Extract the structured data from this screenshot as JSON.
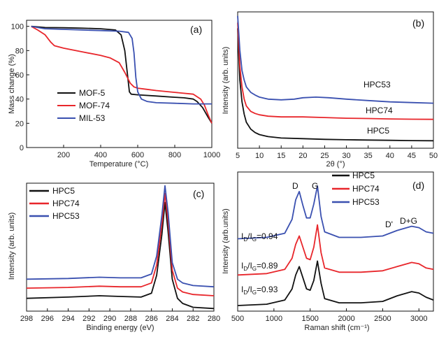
{
  "colors": {
    "black": "#111111",
    "red": "#e8262b",
    "blue": "#3a50b0"
  },
  "chart_data": [
    {
      "panel": "(a)",
      "type": "line",
      "xlabel": "Temperature (°C)",
      "ylabel": "Mass change (%)",
      "xlim": [
        0,
        1000
      ],
      "ylim": [
        0,
        105
      ],
      "xticks": [
        "200",
        "400",
        "600",
        "800",
        "1000"
      ],
      "yticks": [
        "0",
        "20",
        "40",
        "60",
        "80",
        "100"
      ],
      "legend_position": "bottom-left",
      "series": [
        {
          "name": "MOF-5",
          "color": "#111111",
          "x": [
            25,
            100,
            200,
            300,
            400,
            480,
            510,
            530,
            545,
            555,
            565,
            600,
            700,
            800,
            850,
            900,
            920,
            950,
            980,
            1000
          ],
          "y": [
            100,
            99,
            98.8,
            98.5,
            98,
            97,
            93,
            80,
            60,
            46,
            44,
            43.5,
            42.5,
            41.5,
            41,
            40,
            38,
            33,
            25,
            20
          ]
        },
        {
          "name": "MOF-74",
          "color": "#e8262b",
          "x": [
            25,
            60,
            100,
            130,
            150,
            200,
            300,
            400,
            450,
            500,
            530,
            560,
            580,
            600,
            650,
            700,
            800,
            900,
            940,
            960,
            980,
            1000
          ],
          "y": [
            100,
            97,
            93,
            87,
            84,
            82,
            79,
            76,
            74,
            70,
            62,
            53,
            50,
            49,
            48,
            47,
            45.5,
            44,
            40,
            35,
            27,
            20
          ]
        },
        {
          "name": "MIL-53",
          "color": "#3a50b0",
          "x": [
            25,
            100,
            200,
            300,
            400,
            500,
            550,
            570,
            580,
            590,
            600,
            620,
            650,
            700,
            800,
            900,
            950,
            1000
          ],
          "y": [
            100,
            98,
            97.5,
            97,
            96.5,
            96,
            95,
            90,
            78,
            58,
            46,
            40,
            38,
            37,
            36.5,
            36,
            36,
            36
          ]
        }
      ]
    },
    {
      "panel": "(b)",
      "type": "line",
      "xlabel": "2θ (°)",
      "ylabel": "Intensity (arb. units)",
      "xlim": [
        5,
        50
      ],
      "ylim": [
        0,
        100
      ],
      "xticks": [
        "5",
        "10",
        "15",
        "20",
        "25",
        "30",
        "35",
        "40",
        "45",
        "50"
      ],
      "series": [
        {
          "name": "HPC5",
          "color": "#111111",
          "x": [
            5,
            5.5,
            6,
            6.5,
            7,
            8,
            9,
            10,
            12,
            15,
            20,
            25,
            30,
            35,
            40,
            45,
            50
          ],
          "y": [
            88,
            50,
            34,
            25,
            19,
            14,
            11.5,
            10,
            8.5,
            7.5,
            7,
            6.5,
            6.2,
            6,
            5.8,
            5.6,
            5.5
          ]
        },
        {
          "name": "HPC74",
          "color": "#e8262b",
          "x": [
            5,
            5.5,
            6,
            6.5,
            7,
            8,
            9,
            10,
            12,
            15,
            20,
            25,
            30,
            35,
            40,
            45,
            50
          ],
          "y": [
            92,
            60,
            45,
            36,
            31,
            27,
            25.5,
            24.5,
            23.5,
            23,
            23,
            22.5,
            22,
            21.8,
            21.5,
            21.3,
            21.2
          ]
        },
        {
          "name": "HPC53",
          "color": "#3a50b0",
          "x": [
            5,
            5.5,
            6,
            6.5,
            7,
            8,
            9,
            10,
            12,
            15,
            18,
            20,
            23,
            26,
            30,
            35,
            40,
            45,
            50
          ],
          "y": [
            97,
            72,
            57,
            50,
            45,
            41,
            39,
            37.5,
            36,
            35.5,
            36,
            37,
            37.5,
            37,
            36,
            35,
            34,
            33.5,
            33
          ]
        }
      ],
      "annotations": [
        "HPC53",
        "HPC74",
        "HPC5"
      ]
    },
    {
      "panel": "(c)",
      "type": "line",
      "xlabel": "Binding energy (eV)",
      "ylabel": "Intensity (arb. units)",
      "xlim": [
        298,
        280
      ],
      "ylim": [
        0,
        100
      ],
      "xticks": [
        "298",
        "296",
        "294",
        "292",
        "290",
        "288",
        "286",
        "284",
        "282",
        "280"
      ],
      "legend_position": "top-left",
      "series": [
        {
          "name": "HPC5",
          "color": "#111111",
          "x": [
            298,
            294,
            291,
            289,
            287,
            286,
            285.5,
            285,
            284.7,
            284.4,
            284,
            283.5,
            283,
            282,
            280
          ],
          "y": [
            10,
            11,
            12,
            11.5,
            11,
            14,
            28,
            60,
            85,
            62,
            25,
            10,
            6,
            3,
            2
          ]
        },
        {
          "name": "HPC74",
          "color": "#e8262b",
          "x": [
            298,
            294,
            291,
            289,
            287,
            286,
            285.5,
            285,
            284.7,
            284.4,
            284,
            283.5,
            283,
            282,
            280
          ],
          "y": [
            18,
            18.5,
            19.5,
            19,
            19,
            22,
            36,
            68,
            92,
            70,
            32,
            18,
            15,
            13,
            12
          ]
        },
        {
          "name": "HPC53",
          "color": "#3a50b0",
          "x": [
            298,
            294,
            291,
            289,
            287,
            286,
            285.5,
            285,
            284.7,
            284.4,
            284,
            283.5,
            283,
            282,
            280
          ],
          "y": [
            25,
            25.5,
            26.5,
            26,
            26,
            29,
            43,
            75,
            98,
            77,
            38,
            25,
            22,
            20,
            19
          ]
        }
      ]
    },
    {
      "panel": "(d)",
      "type": "line",
      "xlabel": "Raman shift (cm⁻¹)",
      "ylabel": "Intensity (arb.units)",
      "xlim": [
        500,
        3200
      ],
      "ylim": [
        0,
        100
      ],
      "xticks": [
        "500",
        "1000",
        "1500",
        "2000",
        "2500",
        "3000"
      ],
      "legend_position": "top-center",
      "series": [
        {
          "name": "HPC5",
          "color": "#111111",
          "x": [
            500,
            900,
            1150,
            1250,
            1300,
            1350,
            1400,
            1450,
            1500,
            1550,
            1600,
            1650,
            1700,
            1900,
            2200,
            2500,
            2700,
            2900,
            3000,
            3100,
            3200
          ],
          "y": [
            4,
            5,
            8,
            16,
            26,
            32,
            24,
            16,
            15,
            22,
            36,
            20,
            9,
            6,
            6,
            7,
            11,
            14,
            13,
            10,
            8
          ]
        },
        {
          "name": "HPC74",
          "color": "#e8262b",
          "x": [
            500,
            900,
            1150,
            1250,
            1300,
            1350,
            1400,
            1450,
            1500,
            1550,
            1600,
            1650,
            1700,
            1900,
            2200,
            2500,
            2700,
            2900,
            3000,
            3100,
            3200
          ],
          "y": [
            26,
            27,
            30,
            38,
            48,
            54,
            46,
            38,
            37,
            46,
            62,
            42,
            31,
            28,
            28,
            29,
            32,
            35,
            34,
            31,
            30
          ]
        },
        {
          "name": "HPC53",
          "color": "#3a50b0",
          "x": [
            500,
            900,
            1150,
            1250,
            1300,
            1350,
            1400,
            1450,
            1500,
            1550,
            1600,
            1650,
            1700,
            1900,
            2200,
            2500,
            2700,
            2900,
            3000,
            3100,
            3200
          ],
          "y": [
            52,
            53,
            56,
            66,
            80,
            86,
            76,
            67,
            67,
            77,
            90,
            68,
            57,
            53,
            53,
            54,
            58,
            61,
            60,
            57,
            56
          ]
        }
      ],
      "ratio_labels": [
        "0.94",
        "0.89",
        "0.93"
      ],
      "peak_labels": [
        "D",
        "G",
        "D'",
        "D+G"
      ]
    }
  ]
}
